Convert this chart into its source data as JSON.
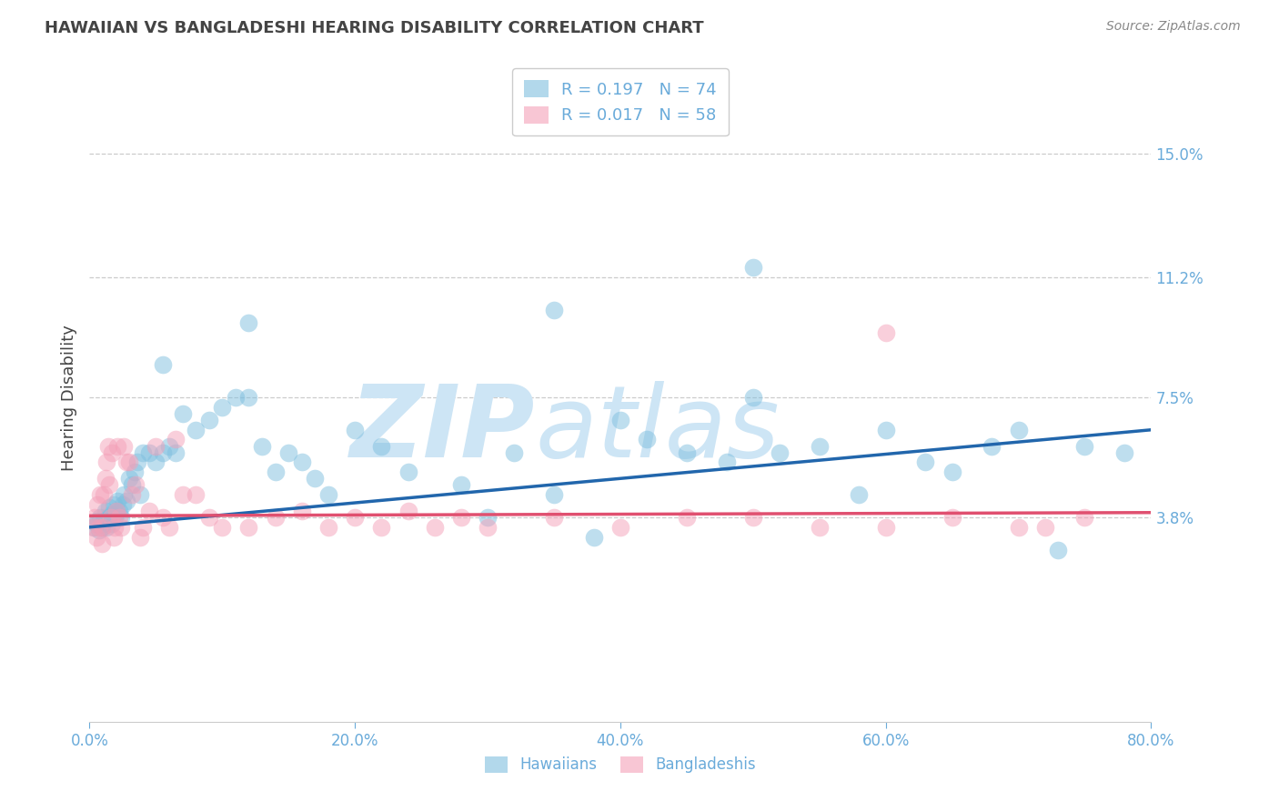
{
  "title": "HAWAIIAN VS BANGLADESHI HEARING DISABILITY CORRELATION CHART",
  "source": "Source: ZipAtlas.com",
  "ylabel": "Hearing Disability",
  "watermark_zip": "ZIP",
  "watermark_atlas": "atlas",
  "xlim": [
    0.0,
    80.0
  ],
  "ylim": [
    -2.5,
    17.5
  ],
  "yticks": [
    3.8,
    7.5,
    11.2,
    15.0
  ],
  "xticks": [
    0.0,
    20.0,
    40.0,
    60.0,
    80.0
  ],
  "hawaiian_color": "#7fbfdf",
  "bangladeshi_color": "#f4a0b8",
  "hawaiian_line_color": "#2166ac",
  "bangladeshi_line_color": "#e05070",
  "title_color": "#444444",
  "tick_color": "#6aabda",
  "watermark_color": "#cde5f5",
  "bg_color": "#ffffff",
  "grid_color": "#cccccc",
  "R_hawaiian": "0.197",
  "N_hawaiian": "74",
  "R_bangladeshi": "0.017",
  "N_bangladeshi": "58",
  "legend1_label": "Hawaiians",
  "legend2_label": "Bangladeshis",
  "hawaiian_x": [
    0.3,
    0.5,
    0.6,
    0.7,
    0.8,
    0.9,
    1.0,
    1.1,
    1.2,
    1.3,
    1.4,
    1.5,
    1.6,
    1.7,
    1.8,
    1.9,
    2.0,
    2.1,
    2.2,
    2.4,
    2.5,
    2.6,
    2.8,
    3.0,
    3.2,
    3.4,
    3.6,
    3.8,
    4.0,
    4.5,
    5.0,
    5.5,
    6.0,
    6.5,
    7.0,
    8.0,
    9.0,
    10.0,
    11.0,
    12.0,
    13.0,
    14.0,
    15.0,
    16.0,
    17.0,
    18.0,
    20.0,
    22.0,
    24.0,
    28.0,
    30.0,
    32.0,
    35.0,
    38.0,
    40.0,
    42.0,
    45.0,
    48.0,
    50.0,
    52.0,
    55.0,
    58.0,
    60.0,
    63.0,
    65.0,
    68.0,
    70.0,
    73.0,
    75.0,
    78.0,
    50.0,
    35.0,
    12.0,
    5.5
  ],
  "hawaiian_y": [
    3.5,
    3.6,
    3.7,
    3.4,
    3.8,
    3.5,
    3.6,
    3.7,
    4.0,
    3.5,
    3.8,
    4.1,
    3.9,
    3.6,
    4.2,
    3.8,
    4.0,
    4.3,
    4.0,
    3.8,
    4.2,
    4.5,
    4.3,
    5.0,
    4.8,
    5.2,
    5.5,
    4.5,
    5.8,
    5.8,
    5.5,
    5.8,
    6.0,
    5.8,
    7.0,
    6.5,
    6.8,
    7.2,
    7.5,
    7.5,
    6.0,
    5.2,
    5.8,
    5.5,
    5.0,
    4.5,
    6.5,
    6.0,
    5.2,
    4.8,
    3.8,
    5.8,
    4.5,
    3.2,
    6.8,
    6.2,
    5.8,
    5.5,
    7.5,
    5.8,
    6.0,
    4.5,
    6.5,
    5.5,
    5.2,
    6.0,
    6.5,
    2.8,
    6.0,
    5.8,
    11.5,
    10.2,
    9.8,
    8.5
  ],
  "bangladeshi_x": [
    0.3,
    0.4,
    0.5,
    0.6,
    0.7,
    0.8,
    0.9,
    1.0,
    1.1,
    1.2,
    1.3,
    1.4,
    1.5,
    1.6,
    1.7,
    1.8,
    1.9,
    2.0,
    2.1,
    2.2,
    2.4,
    2.6,
    2.8,
    3.0,
    3.2,
    3.5,
    3.8,
    4.0,
    4.5,
    5.0,
    5.5,
    6.0,
    6.5,
    7.0,
    8.0,
    9.0,
    10.0,
    12.0,
    14.0,
    16.0,
    18.0,
    20.0,
    22.0,
    24.0,
    26.0,
    28.0,
    30.0,
    35.0,
    40.0,
    45.0,
    50.0,
    55.0,
    60.0,
    65.0,
    70.0,
    72.0,
    75.0,
    60.0
  ],
  "bangladeshi_y": [
    3.5,
    3.8,
    3.2,
    4.2,
    3.5,
    4.5,
    3.0,
    3.5,
    4.5,
    5.0,
    5.5,
    6.0,
    4.8,
    3.8,
    5.8,
    3.2,
    3.5,
    4.0,
    6.0,
    3.8,
    3.5,
    6.0,
    5.5,
    5.5,
    4.5,
    4.8,
    3.2,
    3.5,
    4.0,
    6.0,
    3.8,
    3.5,
    6.2,
    4.5,
    4.5,
    3.8,
    3.5,
    3.5,
    3.8,
    4.0,
    3.5,
    3.8,
    3.5,
    4.0,
    3.5,
    3.8,
    3.5,
    3.8,
    3.5,
    3.8,
    3.8,
    3.5,
    3.5,
    3.8,
    3.5,
    3.5,
    3.8,
    9.5
  ]
}
